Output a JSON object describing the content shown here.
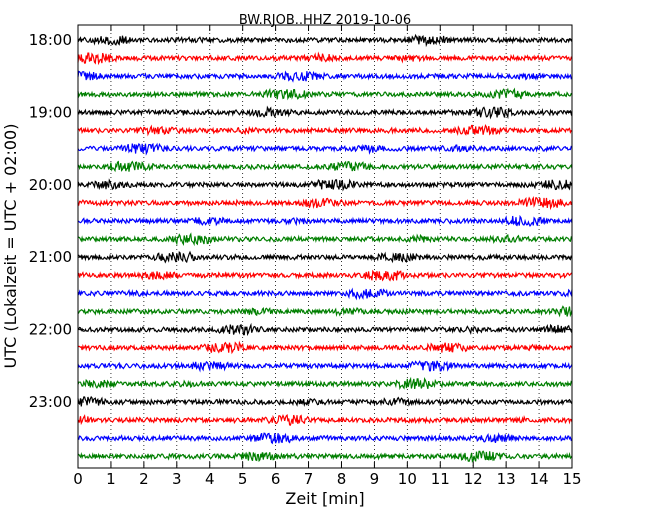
{
  "chart_data": {
    "type": "line",
    "title": "BW.RJOB..HHZ 2019-10-06",
    "xlabel": "Zeit  [min]",
    "ylabel": "UTC (Lokalzeit = UTC + 02:00)",
    "xlim": [
      0,
      15
    ],
    "x_ticks": [
      "0",
      "1",
      "2",
      "3",
      "4",
      "5",
      "6",
      "7",
      "8",
      "9",
      "10",
      "11",
      "12",
      "13",
      "14",
      "15"
    ],
    "y_ticks": [
      "18:00",
      "19:00",
      "20:00",
      "21:00",
      "22:00",
      "23:00"
    ],
    "grid": "vertical dotted lines at each minute",
    "trace_colors": [
      "#000000",
      "#ff0000",
      "#0000ff",
      "#007f00"
    ],
    "trace_count": 24,
    "trace_duration_min": 15,
    "traces_per_hour": 4
  }
}
